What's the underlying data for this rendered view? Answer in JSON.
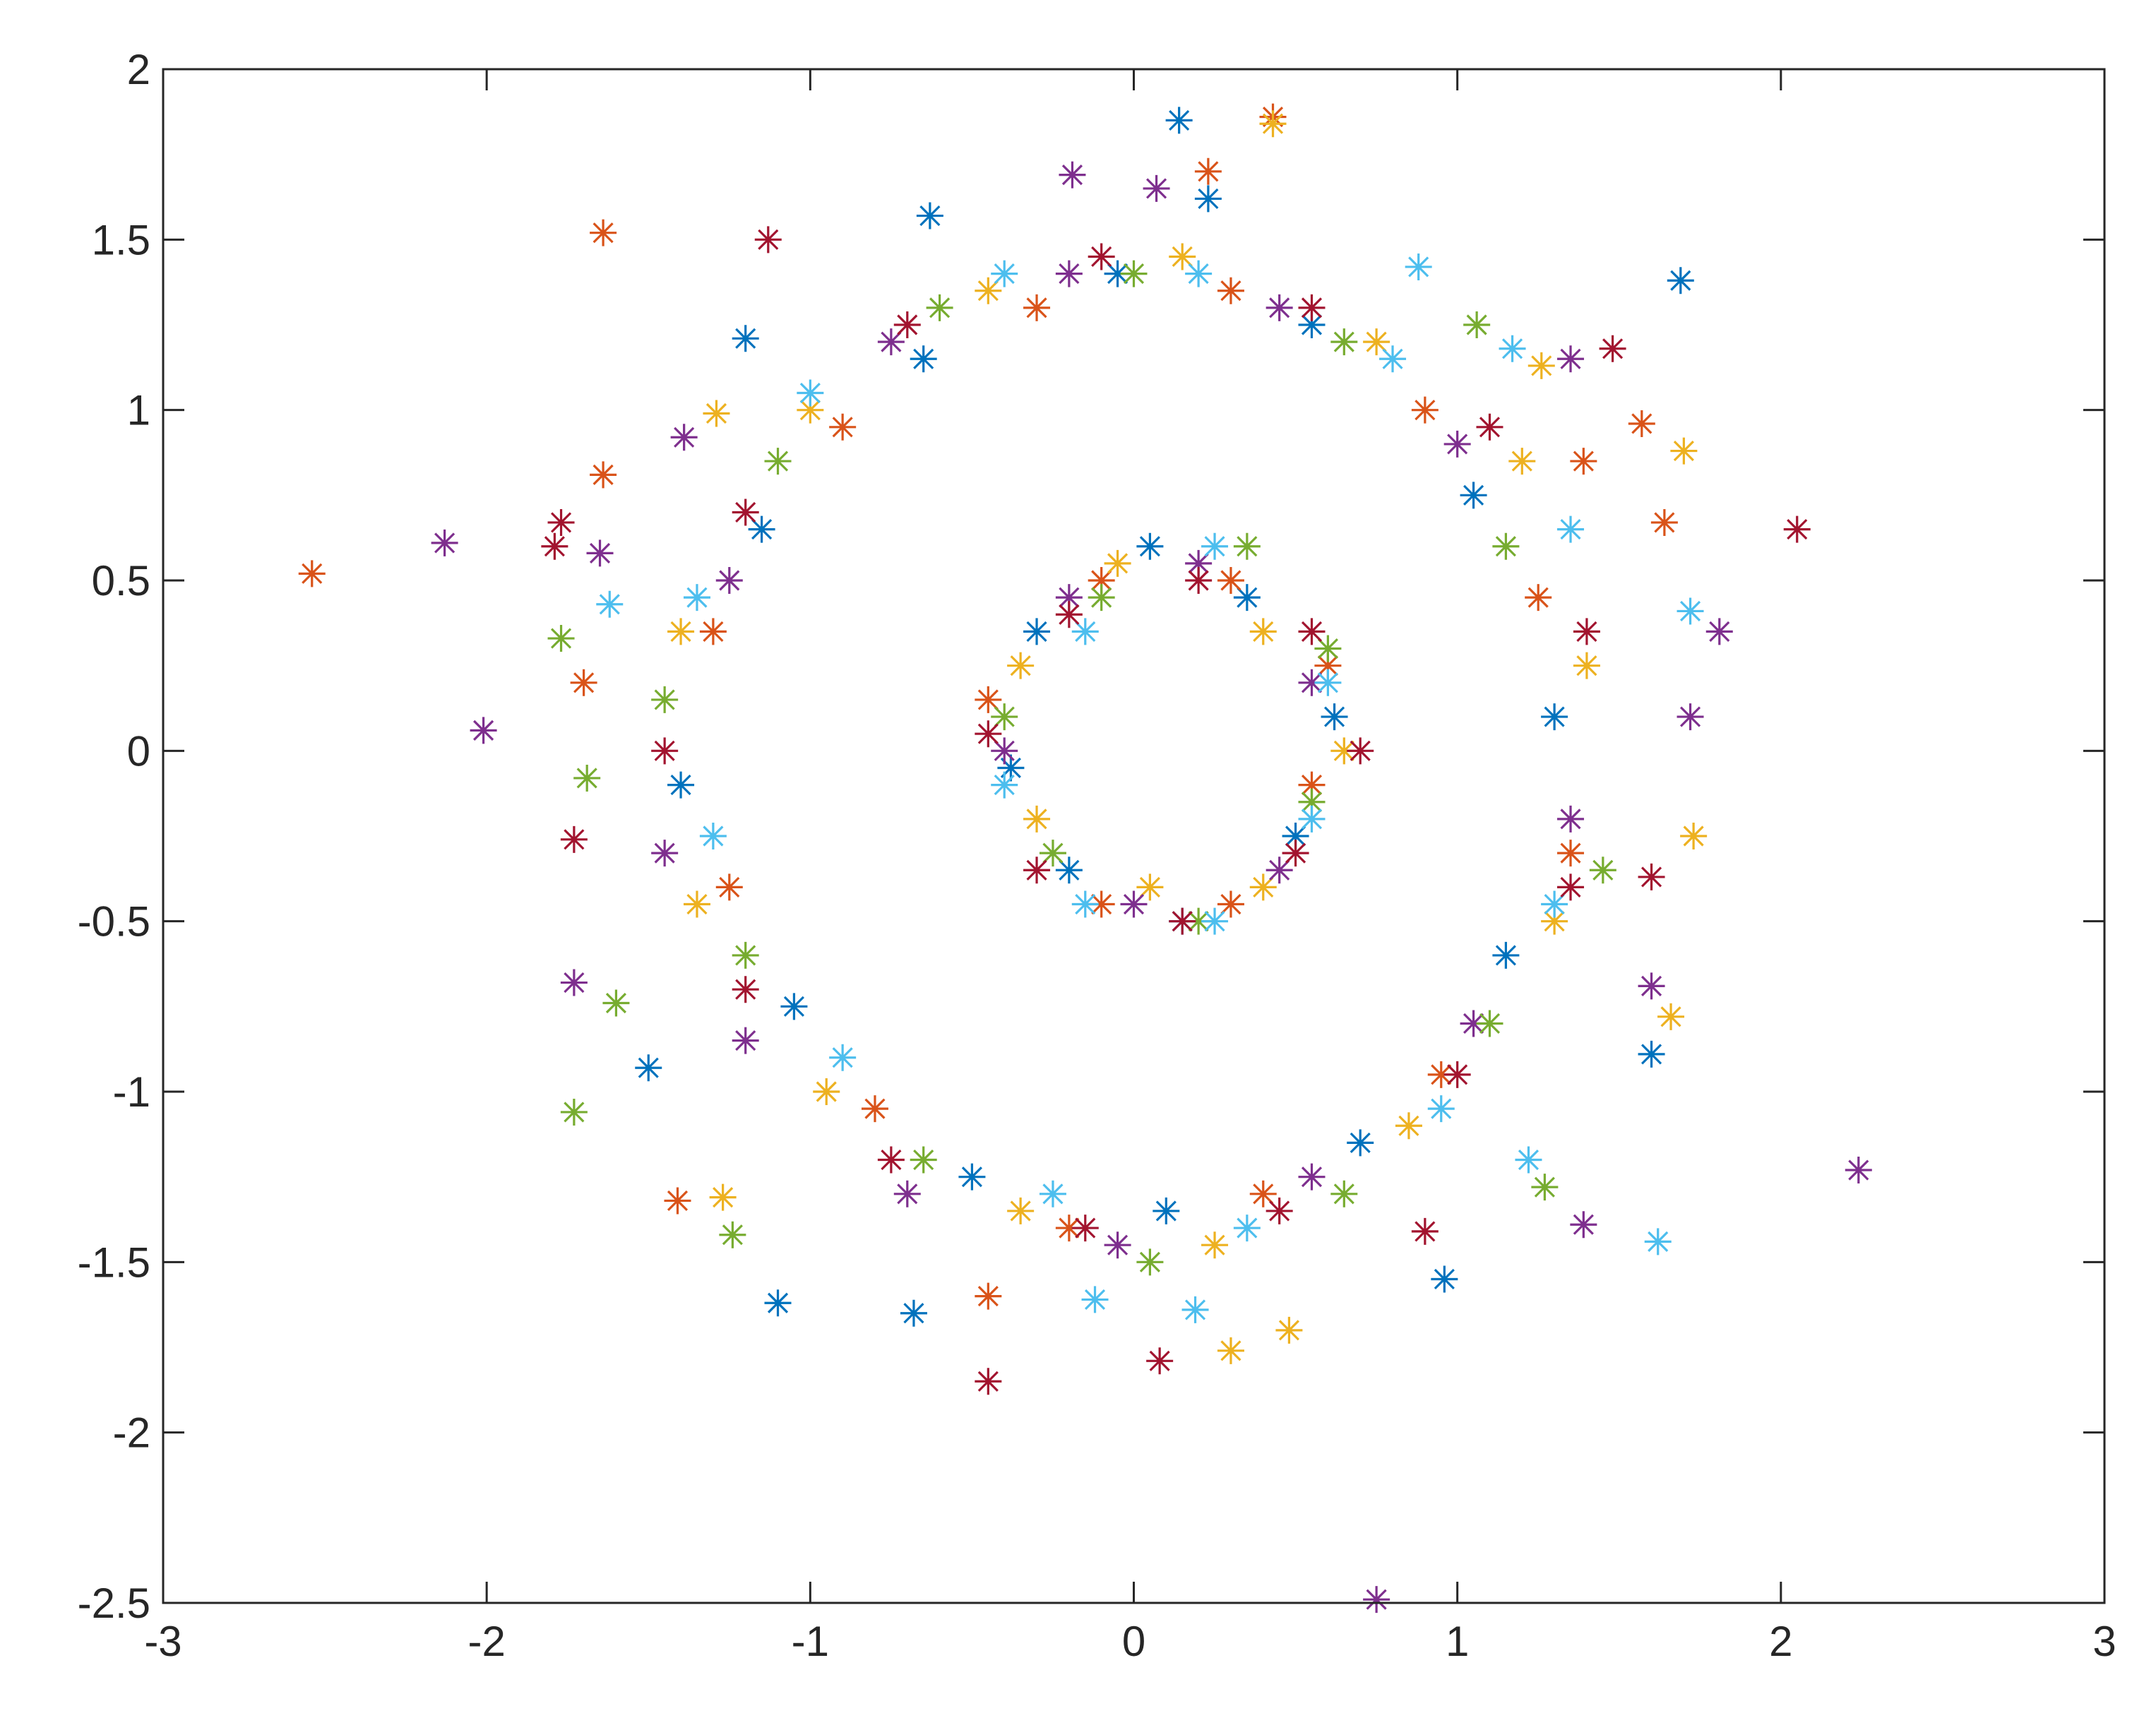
{
  "chart_data": {
    "type": "scatter",
    "marker": "asterisk",
    "box": true,
    "xlim": [
      -3,
      3
    ],
    "ylim": [
      -2.5,
      2
    ],
    "xticks": [
      -3,
      -2,
      -1,
      0,
      1,
      2,
      3
    ],
    "yticks": [
      -2.5,
      -2,
      -1.5,
      -1,
      -0.5,
      0,
      0.5,
      1,
      1.5,
      2
    ],
    "series": [
      {
        "color": "#0072BD",
        "x": [
          0.14,
          0.23,
          1.69,
          -0.63,
          -1.1,
          -0.68,
          0.96,
          -1.5,
          1.6,
          -1.2,
          1.3,
          1.05,
          0.55,
          -0.05,
          -0.65,
          -1.15,
          -1.4,
          -1.05,
          -0.5,
          0.1,
          0.7,
          1.15,
          0.62,
          0.35,
          0.05,
          -0.3,
          -0.38,
          -0.2,
          0.15,
          0.5
        ],
        "y": [
          1.85,
          1.62,
          1.38,
          1.57,
          -1.62,
          -1.65,
          -1.55,
          -0.93,
          -0.89,
          1.21,
          0.1,
          0.75,
          1.25,
          1.4,
          1.15,
          0.65,
          -0.1,
          -0.75,
          -1.25,
          -1.35,
          -1.15,
          -0.6,
          0.1,
          0.45,
          0.6,
          0.35,
          -0.05,
          -0.35,
          -0.5,
          -0.25
        ]
      },
      {
        "color": "#D95319",
        "x": [
          -2.54,
          -1.64,
          0.43,
          0.23,
          -1.64,
          1.57,
          1.64,
          -1.7,
          -1.41,
          -0.45,
          1.39,
          1.25,
          0.9,
          0.3,
          -0.3,
          -0.9,
          -1.3,
          -1.25,
          -0.8,
          -0.2,
          0.4,
          0.95,
          1.35,
          0.55,
          0.3,
          -0.1,
          -0.45,
          -0.1,
          0.3,
          0.6
        ],
        "y": [
          0.52,
          1.52,
          1.86,
          1.7,
          0.81,
          0.96,
          0.67,
          0.2,
          -1.32,
          -1.6,
          0.85,
          0.45,
          1.0,
          1.35,
          1.3,
          0.95,
          0.35,
          -0.4,
          -1.05,
          -1.4,
          -1.3,
          -0.95,
          -0.3,
          -0.1,
          0.5,
          0.5,
          0.15,
          -0.45,
          -0.45,
          0.25
        ]
      },
      {
        "color": "#EDB120",
        "x": [
          0.43,
          1.7,
          1.73,
          0.3,
          0.48,
          -1.29,
          1.26,
          -1.27,
          1.66,
          1.4,
          1.2,
          0.75,
          0.15,
          -0.45,
          -1.0,
          -1.4,
          -1.35,
          -0.95,
          -0.35,
          0.25,
          0.85,
          1.3,
          0.65,
          0.4,
          -0.05,
          -0.35,
          -0.3,
          0.05,
          0.4
        ],
        "y": [
          1.84,
          0.88,
          -0.25,
          -1.76,
          -1.7,
          0.99,
          1.13,
          -1.31,
          -0.78,
          0.25,
          0.85,
          1.2,
          1.45,
          1.35,
          1.0,
          0.35,
          -0.45,
          -1.0,
          -1.35,
          -1.45,
          -1.1,
          -0.5,
          0.0,
          0.35,
          0.55,
          0.25,
          -0.2,
          -0.4,
          -0.4
        ]
      },
      {
        "color": "#7E2F8E",
        "x": [
          -2.13,
          -2.01,
          0.75,
          2.24,
          1.81,
          1.72,
          -0.19,
          0.07,
          -1.65,
          -1.73,
          1.39,
          -1.39,
          1.35,
          1.6,
          1.35,
          1.0,
          0.45,
          -0.2,
          -0.75,
          -1.25,
          -1.45,
          -1.2,
          -0.7,
          -0.05,
          0.55,
          1.05,
          0.55,
          0.2,
          -0.2,
          -0.4,
          0.0,
          0.45
        ],
        "y": [
          0.61,
          0.06,
          -2.49,
          -1.23,
          0.35,
          0.1,
          1.69,
          1.65,
          0.58,
          -0.68,
          -1.39,
          0.92,
          1.15,
          -0.69,
          -0.2,
          0.9,
          1.3,
          1.4,
          1.2,
          0.5,
          -0.3,
          -0.85,
          -1.3,
          -1.45,
          -1.25,
          -0.8,
          0.2,
          0.55,
          0.45,
          0.0,
          -0.45,
          -0.35
        ]
      },
      {
        "color": "#77AC30",
        "x": [
          -1.77,
          -1.73,
          -1.24,
          1.27,
          -1.6,
          1.06,
          -1.69,
          1.45,
          1.15,
          0.65,
          0.0,
          -0.6,
          -1.1,
          -1.45,
          -1.2,
          -0.65,
          0.05,
          0.65,
          1.1,
          0.6,
          0.35,
          -0.1,
          -0.4,
          -0.25,
          0.2,
          0.55
        ],
        "y": [
          0.33,
          -1.06,
          -1.42,
          -1.28,
          -0.74,
          1.25,
          -0.08,
          -0.35,
          0.6,
          1.2,
          1.4,
          1.3,
          0.85,
          0.15,
          -0.6,
          -1.2,
          -1.5,
          -1.3,
          -0.8,
          0.3,
          0.6,
          0.45,
          0.1,
          -0.3,
          -0.5,
          -0.15
        ]
      },
      {
        "color": "#4DBEEE",
        "x": [
          0.88,
          1.62,
          1.17,
          0.19,
          -0.12,
          -1.62,
          1.72,
          1.22,
          1.35,
          0.8,
          0.2,
          -0.4,
          -1.0,
          -1.35,
          -1.3,
          -0.9,
          -0.25,
          0.35,
          0.95,
          1.3,
          0.6,
          0.25,
          -0.15,
          -0.4,
          -0.15,
          0.25,
          0.55
        ],
        "y": [
          1.42,
          -1.44,
          1.18,
          -1.64,
          -1.61,
          0.43,
          0.41,
          -1.2,
          0.65,
          1.15,
          1.4,
          1.4,
          1.05,
          0.45,
          -0.25,
          -0.9,
          -1.3,
          -1.4,
          -1.05,
          -0.45,
          0.2,
          0.6,
          0.35,
          -0.1,
          -0.45,
          -0.5,
          -0.2
        ]
      },
      {
        "color": "#A2142F",
        "x": [
          2.05,
          1.48,
          -0.45,
          0.08,
          -1.77,
          -1.79,
          -1.73,
          -1.13,
          1.6,
          0.9,
          1.4,
          1.1,
          0.55,
          -0.1,
          -0.7,
          -1.2,
          -1.45,
          -1.2,
          -0.75,
          -0.15,
          0.45,
          1.0,
          1.35,
          0.55,
          0.2,
          -0.2,
          -0.45,
          -0.3,
          0.15,
          0.5,
          0.7
        ],
        "y": [
          0.65,
          1.18,
          -1.85,
          -1.79,
          0.67,
          0.6,
          -0.26,
          1.5,
          -0.37,
          -1.41,
          0.35,
          0.95,
          1.3,
          1.45,
          1.25,
          0.7,
          0.0,
          -0.7,
          -1.2,
          -1.4,
          -1.35,
          -0.95,
          -0.4,
          0.35,
          0.5,
          0.4,
          0.05,
          -0.35,
          -0.5,
          -0.3,
          0.0
        ]
      }
    ]
  }
}
